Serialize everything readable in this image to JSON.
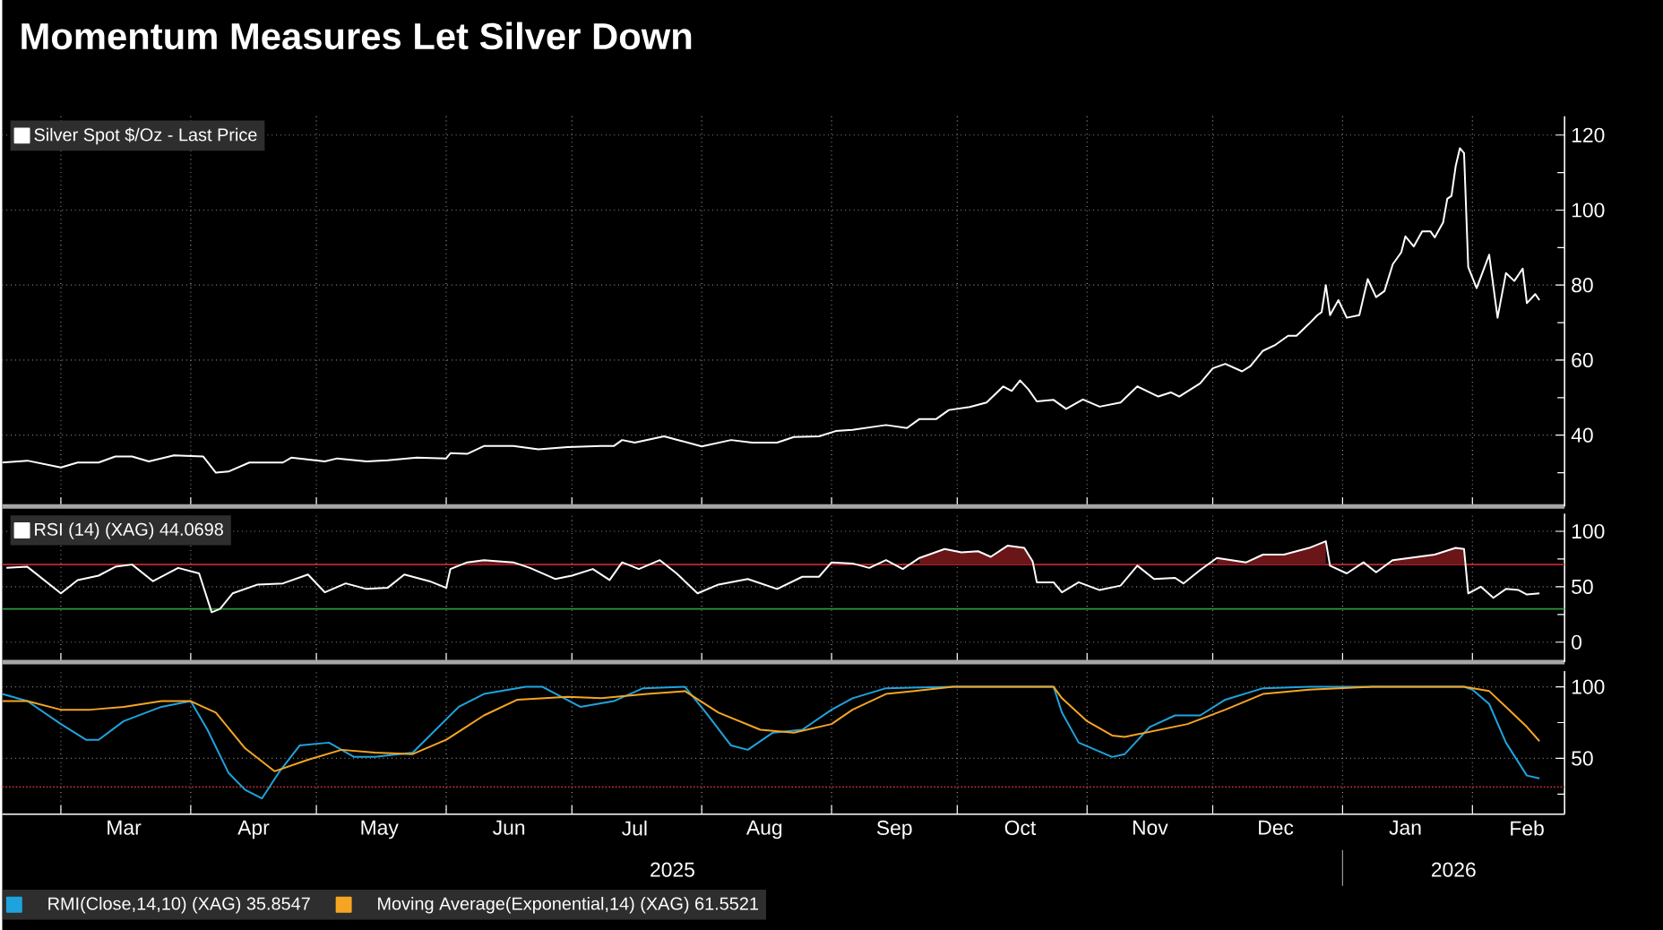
{
  "chart_data": [
    {
      "type": "line",
      "title": "Momentum Measures Let Silver Down",
      "legend": "top left",
      "grid": true,
      "tick_labels": "y",
      "xlim": [
        "2025-02-15",
        "2026-02-23"
      ],
      "ylim": [
        21,
        125
      ],
      "xticks": [
        {
          "value": "2025-03-01",
          "label": null
        },
        {
          "value": "2025-04-01",
          "label": null
        },
        {
          "value": "2025-05-01",
          "label": null
        },
        {
          "value": "2025-06-01",
          "label": null
        },
        {
          "value": "2025-07-01",
          "label": null
        },
        {
          "value": "2025-08-01",
          "label": null
        },
        {
          "value": "2025-09-01",
          "label": null
        },
        {
          "value": "2025-10-01",
          "label": null
        },
        {
          "value": "2025-11-01",
          "label": null
        },
        {
          "value": "2025-12-01",
          "label": null
        },
        {
          "value": "2026-01-01",
          "label": null
        },
        {
          "value": "2026-02-01",
          "label": null
        }
      ],
      "yticks": [
        {
          "value": 30,
          "label": null
        },
        40,
        {
          "value": 50,
          "label": null
        },
        60,
        {
          "value": 70,
          "label": null
        },
        80,
        {
          "value": 90,
          "label": null
        },
        100,
        {
          "value": 110,
          "label": null
        },
        120
      ],
      "series": [
        {
          "name": "Silver Spot $/Oz - Last Price",
          "color": "#ffffff",
          "x": [
            "2025-02-15",
            "2025-02-21",
            "2025-03-01",
            "2025-03-05",
            "2025-03-10",
            "2025-03-14",
            "2025-03-18",
            "2025-03-22",
            "2025-03-28",
            "2025-04-04",
            "2025-04-07",
            "2025-04-10",
            "2025-04-15",
            "2025-04-23",
            "2025-04-25",
            "2025-05-03",
            "2025-05-06",
            "2025-05-13",
            "2025-05-18",
            "2025-05-25",
            "2025-06-01",
            "2025-06-02",
            "2025-06-06",
            "2025-06-10",
            "2025-06-17",
            "2025-06-23",
            "2025-06-30",
            "2025-07-08",
            "2025-07-11",
            "2025-07-13",
            "2025-07-16",
            "2025-07-23",
            "2025-07-27",
            "2025-08-01",
            "2025-08-08",
            "2025-08-13",
            "2025-08-19",
            "2025-08-23",
            "2025-08-29",
            "2025-09-02",
            "2025-09-06",
            "2025-09-14",
            "2025-09-19",
            "2025-09-22",
            "2025-09-26",
            "2025-09-29",
            "2025-10-04",
            "2025-10-08",
            "2025-10-12",
            "2025-10-14",
            "2025-10-16",
            "2025-10-18",
            "2025-10-20",
            "2025-10-24",
            "2025-10-27",
            "2025-10-31",
            "2025-11-04",
            "2025-11-09",
            "2025-11-13",
            "2025-11-18",
            "2025-11-21",
            "2025-11-23",
            "2025-11-28",
            "2025-12-01",
            "2025-12-04",
            "2025-12-08",
            "2025-12-10",
            "2025-12-13",
            "2025-12-16",
            "2025-12-19",
            "2025-12-21",
            "2025-12-24",
            "2025-12-26",
            "2025-12-27",
            "2025-12-28",
            "2025-12-29",
            "2025-12-31",
            "2026-01-02",
            "2026-01-05",
            "2026-01-07",
            "2026-01-09",
            "2026-01-11",
            "2026-01-13",
            "2026-01-15",
            "2026-01-16",
            "2026-01-18",
            "2026-01-20",
            "2026-01-22",
            "2026-01-23",
            "2026-01-25",
            "2026-01-26",
            "2026-01-27",
            "2026-01-28",
            "2026-01-29",
            "2026-01-30",
            "2026-01-31",
            "2026-02-02",
            "2026-02-05",
            "2026-02-07",
            "2026-02-09",
            "2026-02-11",
            "2026-02-13",
            "2026-02-14",
            "2026-02-16",
            "2026-02-17"
          ],
          "values": [
            32.7,
            33.2,
            31.4,
            32.7,
            32.7,
            34.3,
            34.3,
            33.0,
            34.6,
            34.3,
            30.0,
            30.3,
            32.7,
            32.7,
            34.0,
            33.0,
            33.8,
            33.0,
            33.3,
            34.0,
            33.8,
            35.2,
            35.0,
            37.1,
            37.1,
            36.2,
            36.8,
            37.1,
            37.1,
            38.7,
            38.0,
            39.7,
            38.5,
            37.0,
            38.7,
            38.0,
            38.0,
            39.5,
            39.7,
            41.1,
            41.4,
            42.7,
            41.9,
            44.3,
            44.3,
            46.7,
            47.5,
            48.7,
            53.0,
            51.8,
            54.6,
            52.2,
            49.0,
            49.4,
            47.0,
            49.5,
            47.6,
            48.7,
            53.0,
            50.3,
            51.4,
            50.3,
            53.8,
            57.8,
            59.0,
            57.0,
            58.4,
            62.5,
            64.1,
            66.5,
            66.5,
            69.7,
            72.0,
            72.8,
            80.0,
            72.0,
            76.0,
            71.3,
            72.0,
            81.6,
            76.8,
            78.4,
            85.6,
            88.7,
            93.0,
            90.3,
            94.3,
            94.3,
            92.7,
            96.7,
            103.0,
            103.8,
            111.7,
            116.5,
            115.2,
            84.8,
            79.2,
            88.1,
            71.3,
            83.2,
            81.1,
            84.4,
            75.2,
            77.6,
            76.0
          ]
        }
      ]
    },
    {
      "type": "line",
      "legend": "top left",
      "grid": true,
      "tick_labels": "y",
      "xlim": [
        "2025-02-15",
        "2026-02-23"
      ],
      "ylim": [
        -18,
        116
      ],
      "xticks": [
        {
          "value": "2025-03-01",
          "label": null
        },
        {
          "value": "2025-04-01",
          "label": null
        },
        {
          "value": "2025-05-01",
          "label": null
        },
        {
          "value": "2025-06-01",
          "label": null
        },
        {
          "value": "2025-07-01",
          "label": null
        },
        {
          "value": "2025-08-01",
          "label": null
        },
        {
          "value": "2025-09-01",
          "label": null
        },
        {
          "value": "2025-10-01",
          "label": null
        },
        {
          "value": "2025-11-01",
          "label": null
        },
        {
          "value": "2025-12-01",
          "label": null
        },
        {
          "value": "2026-01-01",
          "label": null
        },
        {
          "value": "2026-02-01",
          "label": null
        }
      ],
      "yticks": [
        0,
        {
          "value": 25,
          "label": null
        },
        50,
        {
          "value": 75,
          "label": null
        },
        100
      ],
      "ref_lines": [
        {
          "axis": "y",
          "value": 70,
          "color": "#c0282d"
        },
        {
          "axis": "y",
          "value": 30,
          "color": "#2e9a3a"
        }
      ],
      "series": [
        {
          "name": "RSI (14) (XAG) 44.0698",
          "color": "#ffffff",
          "x": [
            "2025-02-16",
            "2025-02-21",
            "2025-03-01",
            "2025-03-05",
            "2025-03-10",
            "2025-03-14",
            "2025-03-18",
            "2025-03-23",
            "2025-03-29",
            "2025-04-03",
            "2025-04-06",
            "2025-04-08",
            "2025-04-11",
            "2025-04-17",
            "2025-04-23",
            "2025-04-29",
            "2025-05-03",
            "2025-05-08",
            "2025-05-13",
            "2025-05-18",
            "2025-05-22",
            "2025-05-28",
            "2025-06-01",
            "2025-06-02",
            "2025-06-06",
            "2025-06-10",
            "2025-06-17",
            "2025-06-21",
            "2025-06-27",
            "2025-07-01",
            "2025-07-06",
            "2025-07-10",
            "2025-07-13",
            "2025-07-17",
            "2025-07-22",
            "2025-07-26",
            "2025-07-31",
            "2025-08-05",
            "2025-08-12",
            "2025-08-19",
            "2025-08-25",
            "2025-08-29",
            "2025-09-01",
            "2025-09-06",
            "2025-09-10",
            "2025-09-14",
            "2025-09-18",
            "2025-09-22",
            "2025-09-28",
            "2025-10-02",
            "2025-10-06",
            "2025-10-09",
            "2025-10-13",
            "2025-10-17",
            "2025-10-19",
            "2025-10-20",
            "2025-10-24",
            "2025-10-26",
            "2025-10-30",
            "2025-11-04",
            "2025-11-09",
            "2025-11-13",
            "2025-11-17",
            "2025-11-22",
            "2025-11-24",
            "2025-11-28",
            "2025-12-02",
            "2025-12-09",
            "2025-12-13",
            "2025-12-18",
            "2025-12-24",
            "2025-12-28",
            "2025-12-29",
            "2026-01-02",
            "2026-01-06",
            "2026-01-09",
            "2026-01-13",
            "2026-01-19",
            "2026-01-23",
            "2026-01-28",
            "2026-01-30",
            "2026-01-31",
            "2026-02-03",
            "2026-02-06",
            "2026-02-09",
            "2026-02-12",
            "2026-02-14",
            "2026-02-17"
          ],
          "values": [
            67,
            68,
            44,
            56,
            60,
            68,
            70,
            55,
            67,
            62,
            27,
            30,
            44,
            52,
            53,
            61,
            45,
            53,
            48,
            49,
            61,
            55,
            49,
            66,
            72,
            74,
            72,
            67,
            57,
            60,
            66,
            56,
            72,
            66,
            74,
            62,
            44,
            52,
            57,
            48,
            59,
            59,
            72,
            71,
            67,
            74,
            66,
            76,
            84,
            81,
            82,
            77,
            87,
            85,
            73,
            54,
            54,
            45,
            54,
            47,
            51,
            69,
            57,
            58,
            53,
            65,
            76,
            72,
            79,
            79,
            85,
            91,
            69,
            62,
            72,
            63,
            74,
            77,
            79,
            85,
            84,
            44,
            50,
            40,
            48,
            47,
            43,
            44
          ],
          "lower": [
            null,
            null,
            null,
            null,
            null,
            null,
            null,
            null,
            null,
            null,
            null,
            null,
            null,
            null,
            null,
            null,
            null,
            null,
            null,
            null,
            null,
            null,
            null,
            null,
            70,
            70,
            70,
            null,
            null,
            null,
            null,
            null,
            null,
            null,
            null,
            null,
            null,
            null,
            null,
            null,
            null,
            null,
            70,
            70,
            null,
            null,
            null,
            70,
            70,
            70,
            70,
            70,
            70,
            70,
            70,
            null,
            null,
            null,
            null,
            null,
            null,
            null,
            null,
            null,
            null,
            null,
            70,
            70,
            70,
            70,
            70,
            70,
            null,
            null,
            null,
            null,
            70,
            70,
            70,
            70,
            70,
            null,
            null,
            null,
            null,
            null,
            null,
            null
          ],
          "upper": [
            null,
            null,
            null,
            null,
            null,
            null,
            null,
            null,
            null,
            null,
            null,
            null,
            null,
            null,
            null,
            null,
            null,
            null,
            null,
            null,
            null,
            null,
            null,
            null,
            72,
            74,
            72,
            null,
            null,
            null,
            null,
            null,
            null,
            null,
            null,
            null,
            null,
            null,
            null,
            null,
            null,
            null,
            72,
            71,
            null,
            null,
            null,
            76,
            84,
            81,
            82,
            77,
            87,
            85,
            73,
            null,
            null,
            null,
            null,
            null,
            null,
            null,
            null,
            null,
            null,
            null,
            76,
            72,
            79,
            79,
            85,
            91,
            null,
            null,
            null,
            null,
            74,
            77,
            79,
            85,
            84,
            null,
            null,
            null,
            null,
            null,
            null,
            null
          ]
        }
      ]
    },
    {
      "type": "line",
      "legend": "bottom",
      "grid": true,
      "annotations": [
        "2025",
        "2026"
      ],
      "xlim": [
        "2025-02-15",
        "2026-02-23"
      ],
      "ylim": [
        11,
        111
      ],
      "xticks": [
        {
          "value": "2025-03-01",
          "label": null
        },
        {
          "value": "2025-03-16",
          "label": "Mar"
        },
        {
          "value": "2025-04-01",
          "label": null
        },
        {
          "value": "2025-04-16",
          "label": "Apr"
        },
        {
          "value": "2025-05-01",
          "label": null
        },
        {
          "value": "2025-05-16",
          "label": "May"
        },
        {
          "value": "2025-06-01",
          "label": null
        },
        {
          "value": "2025-06-16",
          "label": "Jun"
        },
        {
          "value": "2025-07-01",
          "label": null
        },
        {
          "value": "2025-07-16",
          "label": "Jul"
        },
        {
          "value": "2025-08-01",
          "label": null
        },
        {
          "value": "2025-08-16",
          "label": "Aug"
        },
        {
          "value": "2025-09-01",
          "label": null
        },
        {
          "value": "2025-09-16",
          "label": "Sep"
        },
        {
          "value": "2025-10-01",
          "label": null
        },
        {
          "value": "2025-10-16",
          "label": "Oct"
        },
        {
          "value": "2025-11-01",
          "label": null
        },
        {
          "value": "2025-11-16",
          "label": "Nov"
        },
        {
          "value": "2025-12-01",
          "label": null
        },
        {
          "value": "2025-12-16",
          "label": "Dec"
        },
        {
          "value": "2026-01-01",
          "label": null
        },
        {
          "value": "2026-01-16",
          "label": "Jan"
        },
        {
          "value": "2026-02-01",
          "label": null
        },
        {
          "value": "2026-02-14",
          "label": "Feb"
        }
      ],
      "yticks": [
        {
          "value": 25,
          "label": null
        },
        50,
        {
          "value": 75,
          "label": null
        },
        100
      ],
      "ref_lines": [
        {
          "axis": "y",
          "value": 30,
          "color": "#b0302d",
          "line_style": "dotted"
        }
      ],
      "series": [
        {
          "name": "RMI(Close,14,10) (XAG) 35.8547",
          "color": "#1fa3dc",
          "x": [
            "2025-02-15",
            "2025-02-21",
            "2025-03-01",
            "2025-03-07",
            "2025-03-10",
            "2025-03-16",
            "2025-03-25",
            "2025-04-01",
            "2025-04-05",
            "2025-04-10",
            "2025-04-14",
            "2025-04-18",
            "2025-04-22",
            "2025-04-27",
            "2025-05-04",
            "2025-05-10",
            "2025-05-15",
            "2025-05-24",
            "2025-06-04",
            "2025-06-10",
            "2025-06-20",
            "2025-06-24",
            "2025-07-03",
            "2025-07-11",
            "2025-07-18",
            "2025-07-28",
            "2025-08-02",
            "2025-08-08",
            "2025-08-12",
            "2025-08-18",
            "2025-08-25",
            "2025-09-01",
            "2025-09-06",
            "2025-09-14",
            "2025-09-30",
            "2025-10-24",
            "2025-10-26",
            "2025-10-30",
            "2025-11-07",
            "2025-11-10",
            "2025-11-16",
            "2025-11-22",
            "2025-11-28",
            "2025-12-04",
            "2025-12-13",
            "2025-12-24",
            "2026-01-30",
            "2026-02-01",
            "2026-02-05",
            "2026-02-09",
            "2026-02-14",
            "2026-02-17"
          ],
          "values": [
            95,
            90,
            74,
            63,
            63,
            76,
            86,
            90,
            70,
            40,
            28,
            22,
            40,
            59,
            61,
            51,
            51,
            54,
            86,
            95,
            100,
            100,
            86,
            90,
            99,
            100,
            82,
            59,
            56,
            68,
            70,
            84,
            92,
            99,
            100,
            100,
            82,
            61,
            51,
            53,
            72,
            80,
            80,
            91,
            99,
            100,
            100,
            98,
            88,
            61,
            38,
            36
          ]
        },
        {
          "name": "Moving Average(Exponential,14) (XAG) 61.5521",
          "color": "#f5a523",
          "x": [
            "2025-02-15",
            "2025-02-21",
            "2025-03-01",
            "2025-03-08",
            "2025-03-16",
            "2025-03-25",
            "2025-04-01",
            "2025-04-07",
            "2025-04-14",
            "2025-04-21",
            "2025-04-29",
            "2025-05-07",
            "2025-05-15",
            "2025-05-24",
            "2025-06-01",
            "2025-06-10",
            "2025-06-18",
            "2025-06-30",
            "2025-07-08",
            "2025-07-19",
            "2025-07-28",
            "2025-08-05",
            "2025-08-15",
            "2025-08-23",
            "2025-09-01",
            "2025-09-06",
            "2025-09-14",
            "2025-09-30",
            "2025-10-24",
            "2025-10-26",
            "2025-11-01",
            "2025-11-07",
            "2025-11-10",
            "2025-11-25",
            "2025-12-04",
            "2025-12-13",
            "2025-12-24",
            "2026-01-08",
            "2026-01-30",
            "2026-02-05",
            "2026-02-09",
            "2026-02-14",
            "2026-02-17"
          ],
          "values": [
            90,
            90,
            84,
            84,
            86,
            90,
            90,
            82,
            57,
            41,
            49,
            56,
            54,
            53,
            63,
            80,
            91,
            93,
            92,
            95,
            97,
            82,
            70,
            68,
            74,
            84,
            95,
            100,
            100,
            92,
            76,
            66,
            65,
            74,
            84,
            95,
            98,
            100,
            100,
            97,
            86,
            72,
            62
          ]
        }
      ]
    }
  ]
}
